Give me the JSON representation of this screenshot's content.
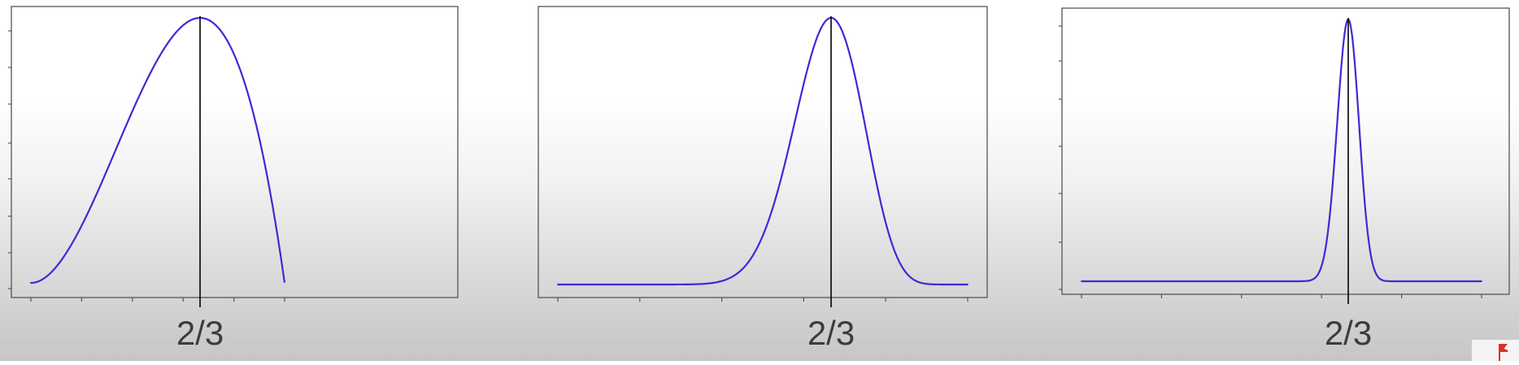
{
  "chart_data": [
    {
      "type": "line",
      "title": "",
      "xlabel": "",
      "ylabel": "",
      "xlim": [
        0,
        1
      ],
      "ylim": [
        0,
        1
      ],
      "x_tick_labels": [
        {
          "x": 0.6667,
          "label": "2/3"
        }
      ],
      "series": [
        {
          "curve": "beta",
          "alpha": 3,
          "beta": 2,
          "color": "#3b2bd6"
        }
      ],
      "marker_x": 0.6667,
      "grid": false
    },
    {
      "type": "line",
      "title": "",
      "xlabel": "",
      "ylabel": "",
      "xlim": [
        0,
        1
      ],
      "ylim": [
        0,
        1
      ],
      "x_tick_labels": [
        {
          "x": 0.6667,
          "label": "2/3"
        }
      ],
      "series": [
        {
          "curve": "beta",
          "alpha": 21,
          "beta": 11,
          "color": "#3b2bd6"
        }
      ],
      "marker_x": 0.6667,
      "grid": false
    },
    {
      "type": "line",
      "title": "",
      "xlabel": "",
      "ylabel": "",
      "xlim": [
        0,
        1
      ],
      "ylim": [
        0,
        1
      ],
      "x_tick_labels": [
        {
          "x": 0.6667,
          "label": "2/3"
        }
      ],
      "series": [
        {
          "curve": "beta",
          "alpha": 201,
          "beta": 101,
          "color": "#3b2bd6"
        }
      ],
      "marker_x": 0.6667,
      "grid": false
    }
  ]
}
